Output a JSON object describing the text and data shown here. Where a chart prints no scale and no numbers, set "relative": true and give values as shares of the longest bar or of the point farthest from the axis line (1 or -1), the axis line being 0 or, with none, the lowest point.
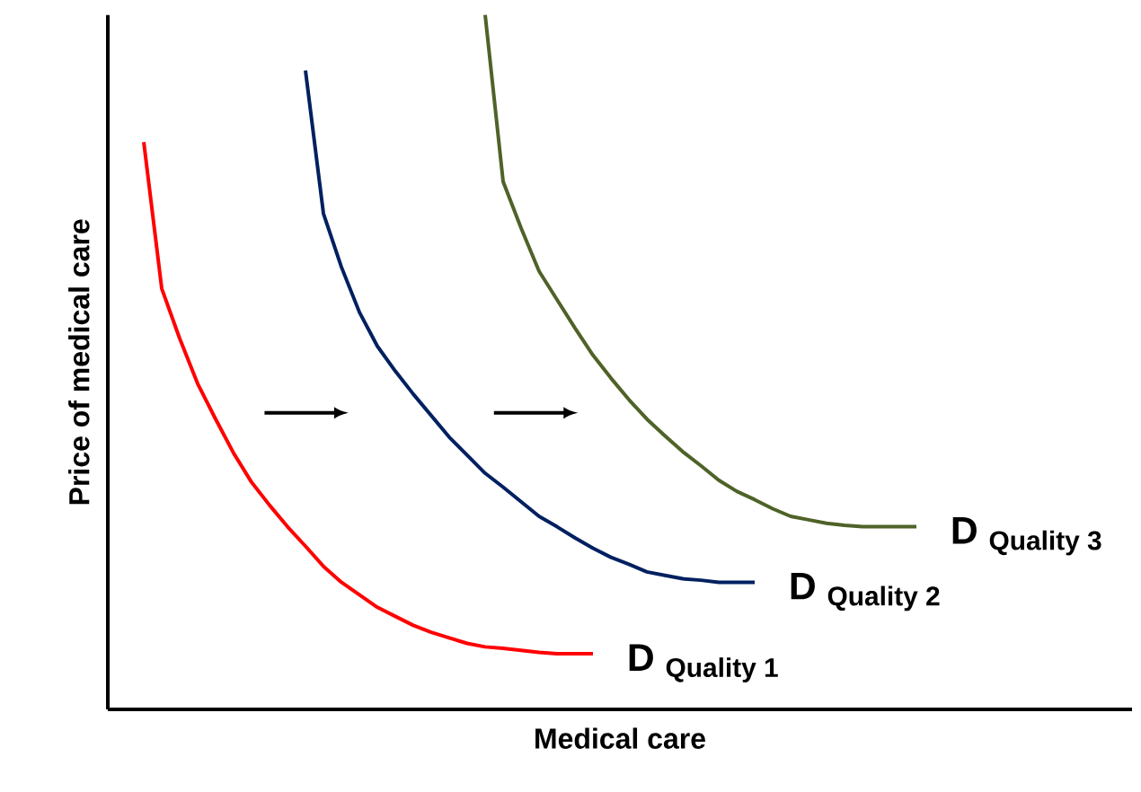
{
  "chart_data": {
    "type": "line",
    "relative": true,
    "xlabel": "Medical care",
    "ylabel": "Price of medical care",
    "tick_labels": false,
    "marker": "none",
    "line_style": "solid",
    "categories": [
      null,
      null,
      null,
      null,
      null,
      null,
      null,
      null,
      null,
      null,
      null,
      null,
      null,
      null,
      null,
      null,
      null,
      null,
      null,
      null,
      null,
      null,
      null,
      null,
      null,
      null,
      null,
      null,
      null,
      null,
      null,
      null,
      null,
      null,
      null,
      null,
      null,
      null,
      null,
      null,
      null,
      null,
      null,
      null,
      null,
      null,
      null,
      null,
      null,
      null,
      null,
      null,
      null,
      null,
      null,
      null,
      null,
      null
    ],
    "series": [
      {
        "name": "D $_{Quality 1}$",
        "color": "#ff0000",
        "values": [
          null,
          null,
          0.817,
          0.606,
          0.534,
          0.469,
          0.418,
          0.369,
          0.327,
          0.294,
          0.263,
          0.235,
          0.206,
          0.183,
          0.165,
          0.147,
          0.134,
          0.121,
          0.111,
          0.103,
          0.095,
          0.09,
          0.088,
          0.085,
          0.082,
          0.08,
          0.08,
          0.08,
          null,
          null,
          null,
          null,
          null,
          null,
          null,
          null,
          null,
          null,
          null,
          null,
          null,
          null,
          null,
          null,
          null,
          null,
          null,
          null,
          null,
          null,
          null,
          null,
          null,
          null,
          null,
          null,
          null,
          null
        ]
      },
      {
        "name": "D $_{Quality 2}$",
        "color": "#002060",
        "values": [
          null,
          null,
          null,
          null,
          null,
          null,
          null,
          null,
          null,
          null,
          null,
          0.92,
          0.714,
          0.637,
          0.572,
          0.523,
          0.487,
          0.454,
          0.423,
          0.392,
          0.366,
          0.34,
          0.32,
          0.299,
          0.278,
          0.263,
          0.247,
          0.232,
          0.219,
          0.209,
          0.198,
          0.193,
          0.188,
          0.186,
          0.183,
          0.183,
          0.183,
          null,
          null,
          null,
          null,
          null,
          null,
          null,
          null,
          null,
          null,
          null,
          null,
          null,
          null,
          null,
          null,
          null,
          null,
          null,
          null,
          null
        ]
      },
      {
        "name": "D $_{Quality 3}$",
        "color": "#4f6228",
        "values": [
          null,
          null,
          null,
          null,
          null,
          null,
          null,
          null,
          null,
          null,
          null,
          null,
          null,
          null,
          null,
          null,
          null,
          null,
          null,
          null,
          null,
          1.0,
          0.76,
          0.693,
          0.631,
          0.59,
          0.549,
          0.51,
          0.477,
          0.446,
          0.418,
          0.394,
          0.371,
          0.351,
          0.33,
          0.314,
          0.302,
          0.289,
          0.278,
          0.273,
          0.268,
          0.265,
          0.263,
          0.263,
          0.263,
          0.263,
          null,
          null,
          null,
          null,
          null,
          null,
          null,
          null,
          null,
          null,
          null,
          null
        ]
      }
    ]
  }
}
